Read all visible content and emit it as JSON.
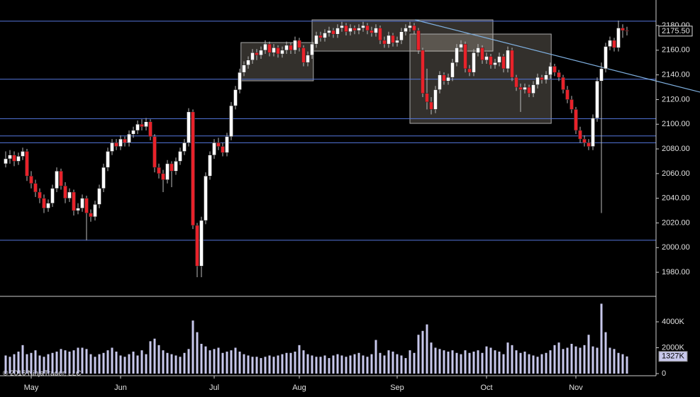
{
  "chart_data": {
    "type": "candlestick",
    "copyright": "© 2016 NinjaTrader, LLC",
    "categories": [
      null,
      null,
      null,
      null,
      null,
      null,
      "May",
      null,
      null,
      null,
      null,
      null,
      null,
      null,
      null,
      null,
      null,
      null,
      null,
      null,
      null,
      null,
      null,
      null,
      null,
      null,
      null,
      "Jun",
      null,
      null,
      null,
      null,
      null,
      null,
      null,
      null,
      null,
      null,
      null,
      null,
      null,
      null,
      null,
      null,
      null,
      null,
      null,
      null,
      null,
      "Jul",
      null,
      null,
      null,
      null,
      null,
      null,
      null,
      null,
      null,
      null,
      null,
      null,
      null,
      null,
      null,
      null,
      null,
      null,
      null,
      "Aug",
      null,
      null,
      null,
      null,
      null,
      null,
      null,
      null,
      null,
      null,
      null,
      null,
      null,
      null,
      null,
      null,
      null,
      null,
      null,
      null,
      null,
      null,
      "Sep",
      null,
      null,
      null,
      null,
      null,
      null,
      null,
      null,
      null,
      null,
      null,
      null,
      null,
      null,
      null,
      null,
      null,
      null,
      null,
      null,
      "Oct",
      null,
      null,
      null,
      null,
      null,
      null,
      null,
      null,
      null,
      null,
      null,
      null,
      null,
      null,
      null,
      null,
      null,
      null,
      null,
      null,
      "Nov",
      null,
      null,
      null,
      null,
      null,
      null,
      null,
      null,
      null,
      null,
      null,
      null
    ],
    "ohlc": [
      [
        2068,
        2078,
        2065,
        2072
      ],
      [
        2072,
        2079,
        2068,
        2075
      ],
      [
        2075,
        2078,
        2066,
        2070
      ],
      [
        2070,
        2077,
        2067,
        2074
      ],
      [
        2074,
        2081,
        2071,
        2078
      ],
      [
        2078,
        2080,
        2054,
        2058
      ],
      [
        2058,
        2062,
        2048,
        2052
      ],
      [
        2052,
        2055,
        2041,
        2045
      ],
      [
        2045,
        2048,
        2036,
        2040
      ],
      [
        2040,
        2043,
        2028,
        2032
      ],
      [
        2032,
        2039,
        2029,
        2036
      ],
      [
        2036,
        2051,
        2033,
        2048
      ],
      [
        2048,
        2065,
        2045,
        2062
      ],
      [
        2062,
        2064,
        2047,
        2050
      ],
      [
        2050,
        2053,
        2036,
        2040
      ],
      [
        2040,
        2048,
        2037,
        2045
      ],
      [
        2045,
        2047,
        2026,
        2030
      ],
      [
        2030,
        2036,
        2027,
        2032
      ],
      [
        2032,
        2043,
        2029,
        2040
      ],
      [
        2040,
        2042,
        2006,
        2028
      ],
      [
        2028,
        2031,
        2021,
        2025
      ],
      [
        2025,
        2038,
        2022,
        2035
      ],
      [
        2035,
        2051,
        2032,
        2048
      ],
      [
        2048,
        2068,
        2045,
        2065
      ],
      [
        2065,
        2081,
        2062,
        2078
      ],
      [
        2078,
        2088,
        2075,
        2085
      ],
      [
        2085,
        2088,
        2079,
        2082
      ],
      [
        2082,
        2091,
        2079,
        2088
      ],
      [
        2088,
        2090,
        2082,
        2085
      ],
      [
        2085,
        2095,
        2082,
        2092
      ],
      [
        2092,
        2098,
        2089,
        2095
      ],
      [
        2095,
        2103,
        2092,
        2100
      ],
      [
        2100,
        2104,
        2095,
        2098
      ],
      [
        2098,
        2105,
        2095,
        2102
      ],
      [
        2102,
        2104,
        2087,
        2090
      ],
      [
        2090,
        2092,
        2061,
        2065
      ],
      [
        2065,
        2068,
        2056,
        2060
      ],
      [
        2060,
        2063,
        2045,
        2055
      ],
      [
        2055,
        2071,
        2052,
        2068
      ],
      [
        2068,
        2070,
        2049,
        2062
      ],
      [
        2062,
        2073,
        2059,
        2070
      ],
      [
        2070,
        2081,
        2067,
        2078
      ],
      [
        2078,
        2088,
        2075,
        2085
      ],
      [
        2085,
        2113,
        2082,
        2110
      ],
      [
        2110,
        2112,
        2015,
        2018
      ],
      [
        2018,
        2020,
        1976,
        1985
      ],
      [
        1985,
        2025,
        1976,
        2022
      ],
      [
        2022,
        2061,
        2019,
        2058
      ],
      [
        2058,
        2078,
        2055,
        2075
      ],
      [
        2075,
        2088,
        2072,
        2085
      ],
      [
        2085,
        2089,
        2079,
        2082
      ],
      [
        2082,
        2085,
        2074,
        2077
      ],
      [
        2077,
        2093,
        2074,
        2090
      ],
      [
        2090,
        2118,
        2087,
        2115
      ],
      [
        2115,
        2131,
        2112,
        2128
      ],
      [
        2128,
        2145,
        2125,
        2142
      ],
      [
        2142,
        2151,
        2139,
        2148
      ],
      [
        2148,
        2155,
        2145,
        2152
      ],
      [
        2152,
        2161,
        2149,
        2158
      ],
      [
        2158,
        2161,
        2152,
        2156
      ],
      [
        2156,
        2163,
        2153,
        2160
      ],
      [
        2160,
        2168,
        2157,
        2165
      ],
      [
        2165,
        2167,
        2155,
        2158
      ],
      [
        2158,
        2165,
        2155,
        2162
      ],
      [
        2162,
        2164,
        2154,
        2157
      ],
      [
        2157,
        2163,
        2154,
        2160
      ],
      [
        2160,
        2167,
        2157,
        2164
      ],
      [
        2164,
        2166,
        2157,
        2160
      ],
      [
        2160,
        2171,
        2157,
        2168
      ],
      [
        2168,
        2170,
        2159,
        2162
      ],
      [
        2162,
        2164,
        2147,
        2150
      ],
      [
        2150,
        2159,
        2147,
        2156
      ],
      [
        2156,
        2168,
        2153,
        2165
      ],
      [
        2165,
        2175,
        2162,
        2172
      ],
      [
        2172,
        2175,
        2167,
        2170
      ],
      [
        2170,
        2177,
        2167,
        2174
      ],
      [
        2174,
        2179,
        2171,
        2176
      ],
      [
        2176,
        2178,
        2170,
        2173
      ],
      [
        2173,
        2181,
        2170,
        2178
      ],
      [
        2178,
        2183,
        2175,
        2180
      ],
      [
        2180,
        2182,
        2172,
        2175
      ],
      [
        2175,
        2181,
        2172,
        2178
      ],
      [
        2178,
        2180,
        2173,
        2176
      ],
      [
        2176,
        2181,
        2173,
        2178
      ],
      [
        2178,
        2183,
        2175,
        2180
      ],
      [
        2180,
        2182,
        2173,
        2176
      ],
      [
        2176,
        2179,
        2171,
        2174
      ],
      [
        2174,
        2181,
        2171,
        2178
      ],
      [
        2178,
        2180,
        2165,
        2168
      ],
      [
        2168,
        2171,
        2162,
        2165
      ],
      [
        2165,
        2175,
        2162,
        2172
      ],
      [
        2172,
        2174,
        2163,
        2166
      ],
      [
        2166,
        2171,
        2163,
        2168
      ],
      [
        2168,
        2178,
        2165,
        2175
      ],
      [
        2175,
        2181,
        2172,
        2178
      ],
      [
        2178,
        2183,
        2175,
        2180
      ],
      [
        2180,
        2182,
        2173,
        2176
      ],
      [
        2176,
        2178,
        2157,
        2160
      ],
      [
        2160,
        2162,
        2122,
        2125
      ],
      [
        2125,
        2145,
        2112,
        2118
      ],
      [
        2118,
        2122,
        2108,
        2112
      ],
      [
        2112,
        2131,
        2109,
        2128
      ],
      [
        2128,
        2143,
        2125,
        2140
      ],
      [
        2140,
        2142,
        2132,
        2135
      ],
      [
        2135,
        2141,
        2132,
        2138
      ],
      [
        2138,
        2153,
        2135,
        2150
      ],
      [
        2150,
        2165,
        2147,
        2162
      ],
      [
        2162,
        2168,
        2159,
        2165
      ],
      [
        2165,
        2167,
        2142,
        2145
      ],
      [
        2145,
        2148,
        2139,
        2142
      ],
      [
        2142,
        2161,
        2139,
        2158
      ],
      [
        2158,
        2165,
        2155,
        2162
      ],
      [
        2162,
        2164,
        2149,
        2152
      ],
      [
        2152,
        2158,
        2149,
        2155
      ],
      [
        2155,
        2157,
        2145,
        2148
      ],
      [
        2148,
        2153,
        2145,
        2150
      ],
      [
        2150,
        2158,
        2147,
        2155
      ],
      [
        2155,
        2157,
        2142,
        2145
      ],
      [
        2145,
        2163,
        2142,
        2160
      ],
      [
        2160,
        2162,
        2135,
        2138
      ],
      [
        2138,
        2140,
        2127,
        2130
      ],
      [
        2130,
        2133,
        2110,
        2128
      ],
      [
        2128,
        2133,
        2125,
        2130
      ],
      [
        2130,
        2132,
        2122,
        2125
      ],
      [
        2125,
        2135,
        2122,
        2132
      ],
      [
        2132,
        2141,
        2129,
        2138
      ],
      [
        2138,
        2140,
        2133,
        2136
      ],
      [
        2136,
        2143,
        2133,
        2140
      ],
      [
        2140,
        2150,
        2137,
        2147
      ],
      [
        2147,
        2149,
        2139,
        2142
      ],
      [
        2142,
        2144,
        2135,
        2138
      ],
      [
        2138,
        2140,
        2125,
        2128
      ],
      [
        2128,
        2131,
        2117,
        2120
      ],
      [
        2120,
        2123,
        2109,
        2112
      ],
      [
        2112,
        2114,
        2092,
        2095
      ],
      [
        2095,
        2098,
        2085,
        2088
      ],
      [
        2088,
        2091,
        2082,
        2085
      ],
      [
        2085,
        2088,
        2079,
        2082
      ],
      [
        2082,
        2108,
        2079,
        2105
      ],
      [
        2105,
        2138,
        2102,
        2135
      ],
      [
        2135,
        2150,
        2028,
        2145
      ],
      [
        2145,
        2166,
        2142,
        2163
      ],
      [
        2163,
        2171,
        2160,
        2168
      ],
      [
        2168,
        2170,
        2159,
        2162
      ],
      [
        2162,
        2184,
        2159,
        2178
      ],
      [
        2178,
        2181,
        2170,
        2176
      ],
      [
        2176,
        2179,
        2172,
        2175.5
      ]
    ],
    "volume": [
      1400,
      1300,
      1500,
      1700,
      2200,
      1500,
      1600,
      1800,
      1400,
      1300,
      1500,
      1600,
      1700,
      1900,
      1800,
      1700,
      1800,
      2000,
      2000,
      1900,
      1500,
      1300,
      1500,
      1600,
      1800,
      2000,
      1700,
      1400,
      1300,
      1500,
      1700,
      1400,
      1800,
      1500,
      2500,
      2700,
      2200,
      1800,
      1600,
      1500,
      1400,
      1300,
      1600,
      1900,
      4100,
      3200,
      2300,
      2100,
      1800,
      1900,
      2000,
      1600,
      1700,
      1800,
      2000,
      1700,
      1500,
      1400,
      1300,
      1300,
      1200,
      1300,
      1400,
      1300,
      1400,
      1500,
      1600,
      1600,
      1700,
      2200,
      1800,
      1500,
      1400,
      1300,
      1300,
      1400,
      1200,
      1400,
      1500,
      1400,
      1300,
      1400,
      1500,
      1600,
      1400,
      1300,
      1500,
      2600,
      1600,
      1400,
      1800,
      1700,
      1500,
      1400,
      1200,
      1800,
      1600,
      3000,
      3300,
      3800,
      2400,
      2000,
      1900,
      1800,
      1700,
      1800,
      1600,
      1500,
      1800,
      1600,
      1700,
      1800,
      1600,
      2100,
      2000,
      1800,
      1700,
      1500,
      2400,
      2200,
      1800,
      1600,
      1700,
      1500,
      1400,
      1300,
      1500,
      1600,
      1800,
      2200,
      2400,
      1900,
      2000,
      2300,
      2100,
      2000,
      2200,
      3000,
      2100,
      2000,
      5400,
      3200,
      2000,
      1900,
      1600,
      1500,
      1327
    ],
    "up_color": "#ffffff",
    "down_color": "#e8222a",
    "volume_color": "#c8c8ec",
    "ylim": [
      1960.5,
      2200.7
    ],
    "yticks": [
      {
        "value": 1980,
        "label": "1980.00"
      },
      {
        "value": 2000,
        "label": "2000.00"
      },
      {
        "value": 2020,
        "label": "2020.00"
      },
      {
        "value": 2040,
        "label": "2040.00"
      },
      {
        "value": 2060,
        "label": "2060.00"
      },
      {
        "value": 2080,
        "label": "2080.00"
      },
      {
        "value": 2100,
        "label": "2100.00"
      },
      {
        "value": 2120,
        "label": "2120.00"
      },
      {
        "value": 2140,
        "label": "2140.00"
      },
      {
        "value": 2160,
        "label": "2160.00"
      },
      {
        "value": 2180,
        "label": "2180.00"
      }
    ],
    "volume_ylim": [
      0,
      5860
    ],
    "volume_ticks": [
      0,
      {
        "value": 2000,
        "label": "2000K"
      },
      {
        "value": 4000,
        "label": "4000K"
      }
    ],
    "last_price": {
      "value": 2175.5,
      "label": "2175.50"
    },
    "last_volume": {
      "value": 1327,
      "label": "1327K"
    },
    "hlines": [
      2183.5,
      2136.5,
      2104.5,
      2090.5,
      2085,
      2006
    ],
    "boxes": [
      {
        "x": [
          55.3,
          72.3
        ],
        "y": [
          2135.2,
          2166.2
        ]
      },
      {
        "x": [
          72,
          114.5
        ],
        "y": [
          2159.3,
          2184.6
        ]
      },
      {
        "x": [
          95,
          128.2
        ],
        "y": [
          2100.7,
          2173.1
        ]
      }
    ],
    "trendline": {
      "x": [
        96.2,
        163.2
      ],
      "y": [
        2184.6,
        2126
      ]
    }
  }
}
